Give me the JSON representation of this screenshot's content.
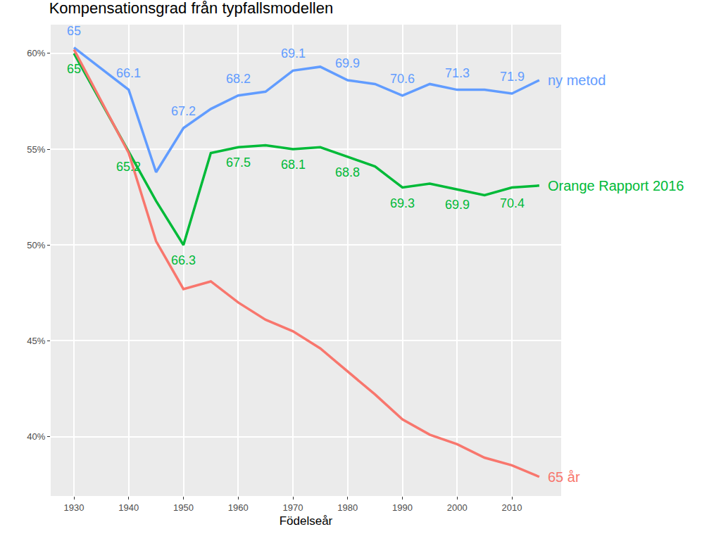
{
  "chart_data": {
    "type": "line",
    "title": "Kompensationsgrad från typfallsmodellen",
    "x_label": "Födelseår",
    "x": [
      1930,
      1940,
      1945,
      1950,
      1955,
      1960,
      1965,
      1970,
      1975,
      1980,
      1985,
      1990,
      1995,
      2000,
      2005,
      2010,
      2015
    ],
    "series": [
      {
        "name": "ny metod",
        "color": "#619CFF",
        "values": [
          60.3,
          58.1,
          53.8,
          56.1,
          57.1,
          57.8,
          58.0,
          59.1,
          59.3,
          58.6,
          58.4,
          57.8,
          58.4,
          58.1,
          58.1,
          57.9,
          58.6
        ],
        "labels": [
          {
            "x": 1930,
            "text": "65"
          },
          {
            "x": 1940,
            "text": "66.1"
          },
          {
            "x": 1950,
            "text": "67.2"
          },
          {
            "x": 1960,
            "text": "68.2"
          },
          {
            "x": 1970,
            "text": "69.1"
          },
          {
            "x": 1980,
            "text": "69.9"
          },
          {
            "x": 1990,
            "text": "70.6"
          },
          {
            "x": 2000,
            "text": "71.3"
          },
          {
            "x": 2010,
            "text": "71.9"
          }
        ]
      },
      {
        "name": "Orange Rapport 2016",
        "color": "#00BA38",
        "values": [
          60.0,
          54.9,
          52.3,
          50.0,
          54.8,
          55.1,
          55.2,
          55.0,
          55.1,
          54.6,
          54.1,
          53.0,
          53.2,
          52.9,
          52.6,
          53.0,
          53.1
        ],
        "labels": [
          {
            "x": 1930,
            "text": "65"
          },
          {
            "x": 1940,
            "text": "65.2"
          },
          {
            "x": 1950,
            "text": "66.3"
          },
          {
            "x": 1960,
            "text": "67.5"
          },
          {
            "x": 1970,
            "text": "68.1"
          },
          {
            "x": 1980,
            "text": "68.8"
          },
          {
            "x": 1990,
            "text": "69.3"
          },
          {
            "x": 2000,
            "text": "69.9"
          },
          {
            "x": 2010,
            "text": "70.4"
          }
        ]
      },
      {
        "name": "65 år",
        "color": "#F8766D",
        "values": [
          60.2,
          54.8,
          50.2,
          47.7,
          48.1,
          47.0,
          46.1,
          45.5,
          44.6,
          43.4,
          42.2,
          40.9,
          40.1,
          39.6,
          38.9,
          38.5,
          37.9
        ]
      }
    ],
    "xlim": [
      1925.75,
      2019
    ],
    "xticks": [
      1930,
      1940,
      1950,
      1960,
      1970,
      1980,
      1990,
      2000,
      2010
    ],
    "ylim": [
      36.9,
      61.5
    ],
    "yticks": [
      {
        "value": 40,
        "label": "40%"
      },
      {
        "value": 45,
        "label": "45%"
      },
      {
        "value": 50,
        "label": "50%"
      },
      {
        "value": 55,
        "label": "55%"
      },
      {
        "value": 60,
        "label": "60%"
      }
    ],
    "grid": true
  }
}
